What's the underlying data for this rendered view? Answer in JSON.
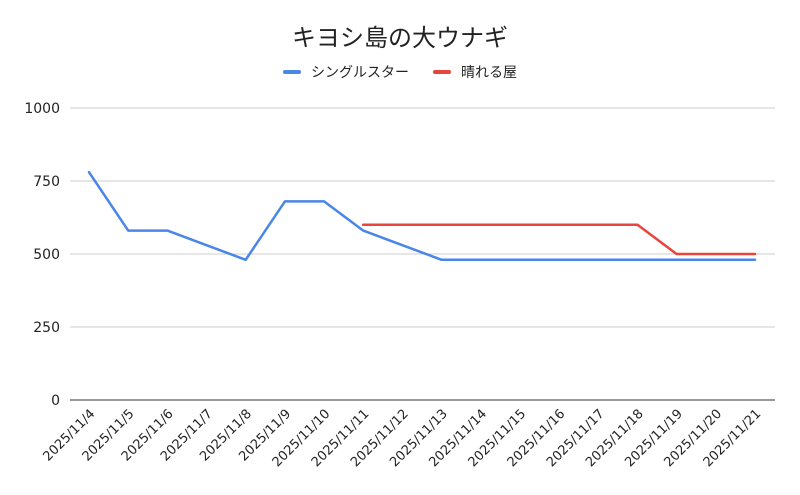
{
  "chart_data": {
    "type": "line",
    "title": "キヨシ島の大ウナギ",
    "xlabel": "",
    "ylabel": "",
    "categories": [
      "2025/11/4",
      "2025/11/5",
      "2025/11/6",
      "2025/11/7",
      "2025/11/8",
      "2025/11/9",
      "2025/11/10",
      "2025/11/11",
      "2025/11/12",
      "2025/11/13",
      "2025/11/14",
      "2025/11/15",
      "2025/11/16",
      "2025/11/17",
      "2025/11/18",
      "2025/11/19",
      "2025/11/20",
      "2025/11/21"
    ],
    "ylim": [
      0,
      1000
    ],
    "yticks": [
      "0",
      "250",
      "500",
      "750",
      "1000"
    ],
    "grid": true,
    "legend_position": "top",
    "series": [
      {
        "name": "シングルスター",
        "color": "#4a86e8",
        "values": [
          780,
          580,
          580,
          530,
          480,
          680,
          680,
          580,
          530,
          480,
          480,
          480,
          480,
          480,
          480,
          480,
          480,
          480
        ]
      },
      {
        "name": "晴れる屋",
        "color": "#e8453c",
        "values": [
          null,
          null,
          null,
          null,
          null,
          null,
          null,
          600,
          600,
          600,
          600,
          600,
          600,
          600,
          600,
          500,
          500,
          500
        ]
      }
    ]
  }
}
